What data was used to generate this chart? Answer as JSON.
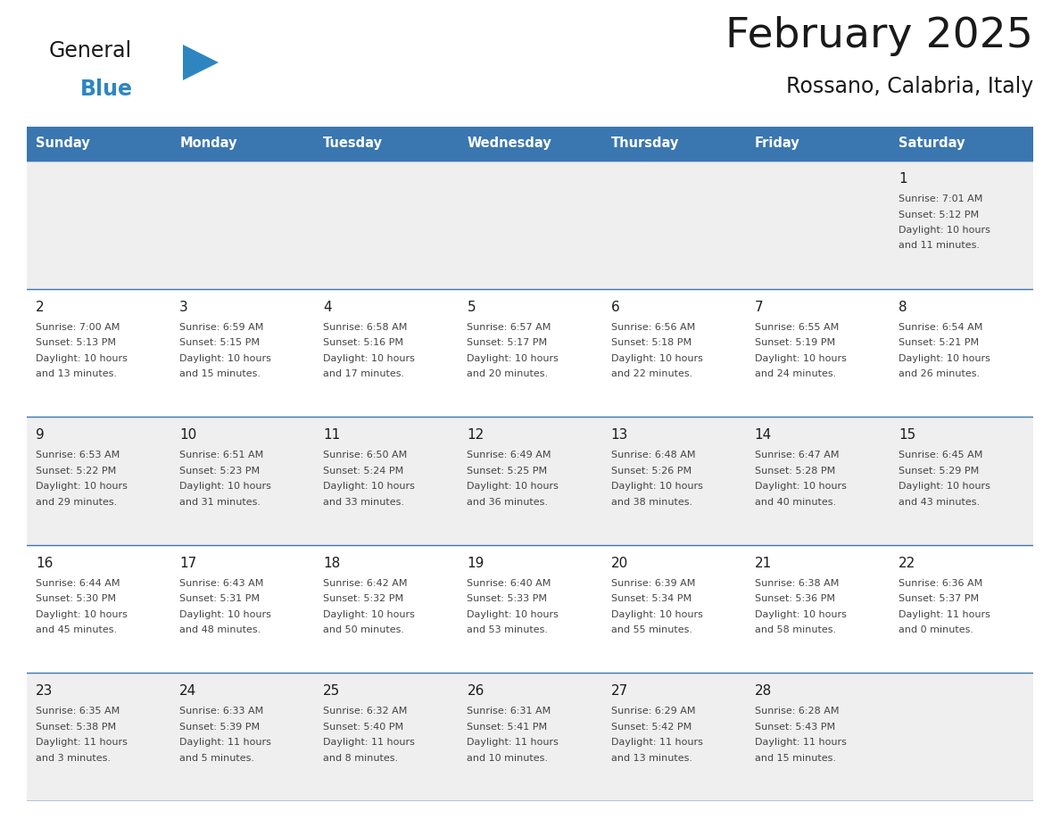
{
  "title": "February 2025",
  "subtitle": "Rossano, Calabria, Italy",
  "header_bg": "#3A76B0",
  "header_text_color": "#FFFFFF",
  "cell_bg_odd": "#EFEFEF",
  "cell_bg_even": "#FFFFFF",
  "grid_line_color": "#3A76B0",
  "days_of_week": [
    "Sunday",
    "Monday",
    "Tuesday",
    "Wednesday",
    "Thursday",
    "Friday",
    "Saturday"
  ],
  "calendar_data": [
    [
      null,
      null,
      null,
      null,
      null,
      null,
      {
        "day": "1",
        "sunrise": "7:01 AM",
        "sunset": "5:12 PM",
        "daylight": "10 hours\nand 11 minutes."
      }
    ],
    [
      {
        "day": "2",
        "sunrise": "7:00 AM",
        "sunset": "5:13 PM",
        "daylight": "10 hours\nand 13 minutes."
      },
      {
        "day": "3",
        "sunrise": "6:59 AM",
        "sunset": "5:15 PM",
        "daylight": "10 hours\nand 15 minutes."
      },
      {
        "day": "4",
        "sunrise": "6:58 AM",
        "sunset": "5:16 PM",
        "daylight": "10 hours\nand 17 minutes."
      },
      {
        "day": "5",
        "sunrise": "6:57 AM",
        "sunset": "5:17 PM",
        "daylight": "10 hours\nand 20 minutes."
      },
      {
        "day": "6",
        "sunrise": "6:56 AM",
        "sunset": "5:18 PM",
        "daylight": "10 hours\nand 22 minutes."
      },
      {
        "day": "7",
        "sunrise": "6:55 AM",
        "sunset": "5:19 PM",
        "daylight": "10 hours\nand 24 minutes."
      },
      {
        "day": "8",
        "sunrise": "6:54 AM",
        "sunset": "5:21 PM",
        "daylight": "10 hours\nand 26 minutes."
      }
    ],
    [
      {
        "day": "9",
        "sunrise": "6:53 AM",
        "sunset": "5:22 PM",
        "daylight": "10 hours\nand 29 minutes."
      },
      {
        "day": "10",
        "sunrise": "6:51 AM",
        "sunset": "5:23 PM",
        "daylight": "10 hours\nand 31 minutes."
      },
      {
        "day": "11",
        "sunrise": "6:50 AM",
        "sunset": "5:24 PM",
        "daylight": "10 hours\nand 33 minutes."
      },
      {
        "day": "12",
        "sunrise": "6:49 AM",
        "sunset": "5:25 PM",
        "daylight": "10 hours\nand 36 minutes."
      },
      {
        "day": "13",
        "sunrise": "6:48 AM",
        "sunset": "5:26 PM",
        "daylight": "10 hours\nand 38 minutes."
      },
      {
        "day": "14",
        "sunrise": "6:47 AM",
        "sunset": "5:28 PM",
        "daylight": "10 hours\nand 40 minutes."
      },
      {
        "day": "15",
        "sunrise": "6:45 AM",
        "sunset": "5:29 PM",
        "daylight": "10 hours\nand 43 minutes."
      }
    ],
    [
      {
        "day": "16",
        "sunrise": "6:44 AM",
        "sunset": "5:30 PM",
        "daylight": "10 hours\nand 45 minutes."
      },
      {
        "day": "17",
        "sunrise": "6:43 AM",
        "sunset": "5:31 PM",
        "daylight": "10 hours\nand 48 minutes."
      },
      {
        "day": "18",
        "sunrise": "6:42 AM",
        "sunset": "5:32 PM",
        "daylight": "10 hours\nand 50 minutes."
      },
      {
        "day": "19",
        "sunrise": "6:40 AM",
        "sunset": "5:33 PM",
        "daylight": "10 hours\nand 53 minutes."
      },
      {
        "day": "20",
        "sunrise": "6:39 AM",
        "sunset": "5:34 PM",
        "daylight": "10 hours\nand 55 minutes."
      },
      {
        "day": "21",
        "sunrise": "6:38 AM",
        "sunset": "5:36 PM",
        "daylight": "10 hours\nand 58 minutes."
      },
      {
        "day": "22",
        "sunrise": "6:36 AM",
        "sunset": "5:37 PM",
        "daylight": "11 hours\nand 0 minutes."
      }
    ],
    [
      {
        "day": "23",
        "sunrise": "6:35 AM",
        "sunset": "5:38 PM",
        "daylight": "11 hours\nand 3 minutes."
      },
      {
        "day": "24",
        "sunrise": "6:33 AM",
        "sunset": "5:39 PM",
        "daylight": "11 hours\nand 5 minutes."
      },
      {
        "day": "25",
        "sunrise": "6:32 AM",
        "sunset": "5:40 PM",
        "daylight": "11 hours\nand 8 minutes."
      },
      {
        "day": "26",
        "sunrise": "6:31 AM",
        "sunset": "5:41 PM",
        "daylight": "11 hours\nand 10 minutes."
      },
      {
        "day": "27",
        "sunrise": "6:29 AM",
        "sunset": "5:42 PM",
        "daylight": "11 hours\nand 13 minutes."
      },
      {
        "day": "28",
        "sunrise": "6:28 AM",
        "sunset": "5:43 PM",
        "daylight": "11 hours\nand 15 minutes."
      },
      null
    ]
  ],
  "logo_general_color": "#1a1a1a",
  "logo_blue_color": "#2E86C1",
  "logo_triangle_color": "#2E86C1",
  "fig_width": 11.88,
  "fig_height": 9.18,
  "dpi": 100
}
